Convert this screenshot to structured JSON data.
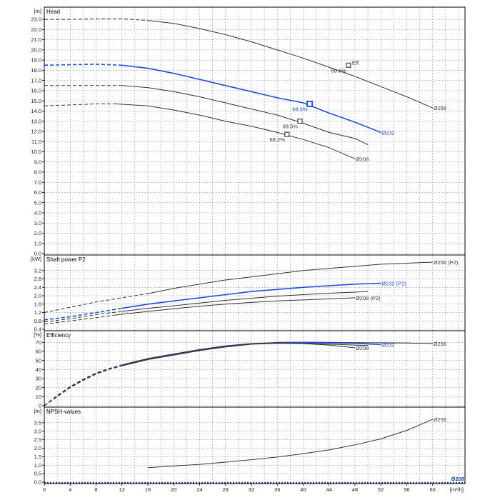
{
  "chart_data": {
    "type": "line",
    "x_unit": "[m³/h]",
    "x_ticks": [
      0,
      4,
      8,
      12,
      16,
      20,
      24,
      28,
      32,
      36,
      40,
      44,
      48,
      52,
      56,
      60
    ],
    "xlim": [
      0,
      65
    ],
    "colors": {
      "dark": "#333333",
      "blue": "#1f4fe0",
      "axis": "#1a3f9e"
    },
    "panels": [
      {
        "id": "head",
        "title": "Head",
        "unit": "[m]",
        "ylim": [
          0,
          23.5
        ],
        "y_ticks": [
          0.0,
          1.0,
          2.0,
          3.0,
          4.0,
          5.0,
          6.0,
          7.0,
          8.0,
          9.0,
          10.0,
          11.0,
          12.0,
          13.0,
          14.0,
          15.0,
          16.0,
          17.0,
          18.0,
          19.0,
          20.0,
          21.0,
          22.0,
          23.0
        ],
        "y_tick_labels": [
          "0.0",
          "1.0",
          "2.0",
          "3.0",
          "4.0",
          "5.0",
          "6.0",
          "7.0",
          "8.0",
          "9.0",
          "10.0",
          "11.0",
          "12.0",
          "13.0",
          "14.0",
          "15.0",
          "16.0",
          "17.0",
          "18.0",
          "19.0",
          "20.0",
          "21.0",
          "22.0",
          "23.0"
        ],
        "series": [
          {
            "name": "Ø256",
            "color": "dark",
            "dash_to": 16,
            "points": [
              [
                0,
                23.0
              ],
              [
                4,
                23.0
              ],
              [
                8,
                23.05
              ],
              [
                12,
                23.05
              ],
              [
                16,
                22.9
              ],
              [
                20,
                22.6
              ],
              [
                24,
                22.1
              ],
              [
                28,
                21.5
              ],
              [
                32,
                20.8
              ],
              [
                36,
                20.0
              ],
              [
                40,
                19.2
              ],
              [
                44,
                18.3
              ],
              [
                48,
                17.4
              ],
              [
                52,
                16.4
              ],
              [
                56,
                15.4
              ],
              [
                60,
                14.3
              ]
            ]
          },
          {
            "name": "Ø232",
            "color": "blue",
            "dash_to": 12,
            "points": [
              [
                0,
                18.5
              ],
              [
                4,
                18.55
              ],
              [
                8,
                18.6
              ],
              [
                12,
                18.5
              ],
              [
                16,
                18.2
              ],
              [
                20,
                17.7
              ],
              [
                24,
                17.1
              ],
              [
                28,
                16.5
              ],
              [
                32,
                15.9
              ],
              [
                36,
                15.3
              ],
              [
                40,
                14.8
              ],
              [
                44,
                13.8
              ],
              [
                48,
                12.9
              ],
              [
                52,
                11.9
              ]
            ]
          },
          {
            "name": "",
            "color": "dark",
            "dash_to": 12,
            "points": [
              [
                0,
                16.5
              ],
              [
                4,
                16.5
              ],
              [
                8,
                16.5
              ],
              [
                12,
                16.5
              ],
              [
                16,
                16.3
              ],
              [
                20,
                15.9
              ],
              [
                24,
                15.4
              ],
              [
                28,
                14.8
              ],
              [
                32,
                14.2
              ],
              [
                36,
                13.6
              ],
              [
                40,
                12.8
              ],
              [
                44,
                11.9
              ],
              [
                48,
                11.3
              ],
              [
                50,
                10.7
              ]
            ]
          },
          {
            "name": "Ø208",
            "color": "dark",
            "dash_to": 11,
            "points": [
              [
                0,
                14.5
              ],
              [
                4,
                14.6
              ],
              [
                8,
                14.7
              ],
              [
                11,
                14.7
              ],
              [
                16,
                14.5
              ],
              [
                20,
                14.1
              ],
              [
                24,
                13.6
              ],
              [
                28,
                13.0
              ],
              [
                32,
                12.5
              ],
              [
                36,
                11.9
              ],
              [
                40,
                11.2
              ],
              [
                44,
                10.4
              ],
              [
                48,
                9.3
              ]
            ]
          }
        ],
        "markers": [
          {
            "x": 47,
            "y": 18.5,
            "label": "69.6%",
            "color": "dark",
            "note": "Eff."
          },
          {
            "x": 41,
            "y": 14.7,
            "label": "68.9%",
            "color": "blue",
            "note": ""
          },
          {
            "x": 39.5,
            "y": 13.0,
            "label": "68.5%",
            "color": "dark",
            "note": ""
          },
          {
            "x": 37.5,
            "y": 11.7,
            "label": "68.2%",
            "color": "dark",
            "note": ""
          }
        ]
      },
      {
        "id": "power",
        "title": "Shaft power P2",
        "unit": "[kW]",
        "ylim": [
          0.4,
          3.6
        ],
        "y_ticks": [
          0.4,
          0.8,
          1.2,
          1.6,
          2.0,
          2.4,
          2.8,
          3.2
        ],
        "y_tick_labels": [
          "0.4",
          "0.8",
          "1.2",
          "1.6",
          "2.0",
          "2.4",
          "2.8",
          "3.2"
        ],
        "series": [
          {
            "name": "Ø256 (P2)",
            "color": "dark",
            "dash_to": 16,
            "points": [
              [
                0,
                1.2
              ],
              [
                4,
                1.45
              ],
              [
                8,
                1.7
              ],
              [
                12,
                1.9
              ],
              [
                16,
                2.1
              ],
              [
                20,
                2.35
              ],
              [
                24,
                2.55
              ],
              [
                28,
                2.75
              ],
              [
                32,
                2.9
              ],
              [
                36,
                3.05
              ],
              [
                40,
                3.2
              ],
              [
                44,
                3.3
              ],
              [
                48,
                3.4
              ],
              [
                52,
                3.5
              ],
              [
                56,
                3.55
              ],
              [
                60,
                3.6
              ]
            ]
          },
          {
            "name": "Ø232 (P2)",
            "color": "blue",
            "dash_to": 12,
            "points": [
              [
                0,
                0.85
              ],
              [
                4,
                1.0
              ],
              [
                8,
                1.2
              ],
              [
                12,
                1.4
              ],
              [
                16,
                1.6
              ],
              [
                20,
                1.75
              ],
              [
                24,
                1.9
              ],
              [
                28,
                2.05
              ],
              [
                32,
                2.2
              ],
              [
                36,
                2.3
              ],
              [
                40,
                2.4
              ],
              [
                44,
                2.48
              ],
              [
                48,
                2.55
              ],
              [
                52,
                2.6
              ]
            ]
          },
          {
            "name": "",
            "color": "dark",
            "dash_to": 12,
            "points": [
              [
                0,
                0.75
              ],
              [
                4,
                0.9
              ],
              [
                8,
                1.1
              ],
              [
                12,
                1.25
              ],
              [
                16,
                1.4
              ],
              [
                20,
                1.52
              ],
              [
                24,
                1.65
              ],
              [
                28,
                1.78
              ],
              [
                32,
                1.88
              ],
              [
                36,
                1.98
              ],
              [
                40,
                2.05
              ],
              [
                44,
                2.12
              ],
              [
                48,
                2.17
              ],
              [
                50,
                2.2
              ]
            ]
          },
          {
            "name": "Ø208 (P2)",
            "color": "dark",
            "dash_to": 11,
            "points": [
              [
                0,
                0.65
              ],
              [
                4,
                0.8
              ],
              [
                8,
                0.95
              ],
              [
                11,
                1.08
              ],
              [
                16,
                1.25
              ],
              [
                20,
                1.38
              ],
              [
                24,
                1.5
              ],
              [
                28,
                1.6
              ],
              [
                32,
                1.68
              ],
              [
                36,
                1.75
              ],
              [
                40,
                1.8
              ],
              [
                44,
                1.85
              ],
              [
                48,
                1.9
              ]
            ]
          }
        ]
      },
      {
        "id": "eff",
        "title": "Efficiency",
        "unit": "[%]",
        "ylim": [
          0,
          75
        ],
        "y_ticks": [
          0,
          10,
          20,
          30,
          40,
          50,
          60,
          70
        ],
        "y_tick_labels": [
          "0",
          "10",
          "20",
          "30",
          "40",
          "50",
          "60",
          "70"
        ],
        "series": [
          {
            "name": "Ø256",
            "color": "dark",
            "dash_to": 12,
            "points": [
              [
                0,
                0
              ],
              [
                2,
                10
              ],
              [
                4,
                20
              ],
              [
                6,
                28
              ],
              [
                8,
                35
              ],
              [
                10,
                40
              ],
              [
                12,
                44
              ],
              [
                16,
                51
              ],
              [
                20,
                56
              ],
              [
                24,
                61
              ],
              [
                28,
                65
              ],
              [
                32,
                68
              ],
              [
                36,
                70
              ],
              [
                40,
                70.3
              ],
              [
                44,
                70
              ],
              [
                48,
                69.6
              ],
              [
                52,
                69.5
              ],
              [
                56,
                69.3
              ],
              [
                60,
                68.8
              ]
            ]
          },
          {
            "name": "Ø232",
            "color": "blue",
            "dash_to": 12,
            "points": [
              [
                0,
                0
              ],
              [
                2,
                11
              ],
              [
                4,
                21
              ],
              [
                6,
                29
              ],
              [
                8,
                36
              ],
              [
                10,
                41
              ],
              [
                12,
                45
              ],
              [
                16,
                52
              ],
              [
                20,
                57
              ],
              [
                24,
                62
              ],
              [
                28,
                66
              ],
              [
                32,
                68.5
              ],
              [
                36,
                69.5
              ],
              [
                40,
                69.8
              ],
              [
                44,
                69.4
              ],
              [
                48,
                68.9
              ],
              [
                52,
                67.5
              ]
            ]
          },
          {
            "name": "",
            "color": "dark",
            "dash_to": 12,
            "points": [
              [
                0,
                0
              ],
              [
                2,
                11
              ],
              [
                4,
                21
              ],
              [
                6,
                29
              ],
              [
                8,
                36
              ],
              [
                10,
                41
              ],
              [
                12,
                45
              ],
              [
                16,
                52
              ],
              [
                20,
                57
              ],
              [
                24,
                62
              ],
              [
                28,
                66
              ],
              [
                32,
                68.5
              ],
              [
                36,
                69.5
              ],
              [
                40,
                69
              ],
              [
                44,
                68
              ],
              [
                48,
                67
              ],
              [
                50,
                66.5
              ]
            ]
          },
          {
            "name": "Ø208",
            "color": "dark",
            "dash_to": 11,
            "points": [
              [
                0,
                0
              ],
              [
                2,
                10
              ],
              [
                4,
                20
              ],
              [
                6,
                28
              ],
              [
                8,
                35
              ],
              [
                10,
                40
              ],
              [
                12,
                44
              ],
              [
                16,
                51
              ],
              [
                20,
                56
              ],
              [
                24,
                61
              ],
              [
                28,
                65
              ],
              [
                32,
                68
              ],
              [
                36,
                69
              ],
              [
                40,
                68.7
              ],
              [
                44,
                67
              ],
              [
                48,
                64
              ]
            ]
          }
        ]
      },
      {
        "id": "npsh",
        "title": "NPSH-values",
        "unit": "[m]",
        "ylim": [
          0,
          4.0
        ],
        "y_ticks": [
          0.0,
          0.5,
          1.0,
          1.5,
          2.0,
          2.5,
          3.0,
          3.5
        ],
        "y_tick_labels": [
          "0.0",
          "0.5",
          "1.0",
          "1.5",
          "2.0",
          "2.5",
          "3.0",
          "3.5"
        ],
        "series": [
          {
            "name": "Ø256",
            "color": "dark",
            "dash_to": null,
            "points": [
              [
                16,
                0.85
              ],
              [
                20,
                0.95
              ],
              [
                24,
                1.05
              ],
              [
                28,
                1.18
              ],
              [
                32,
                1.32
              ],
              [
                36,
                1.48
              ],
              [
                40,
                1.68
              ],
              [
                44,
                1.9
              ],
              [
                48,
                2.2
              ],
              [
                52,
                2.55
              ],
              [
                56,
                3.05
              ],
              [
                60,
                3.7
              ]
            ]
          }
        ],
        "baseline_label": "Ø208"
      }
    ]
  }
}
